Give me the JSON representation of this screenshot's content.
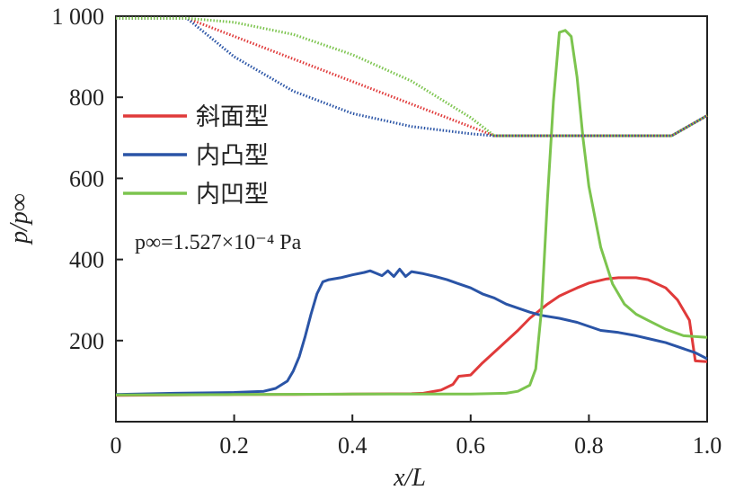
{
  "chart_data": {
    "type": "line",
    "xlabel": "x/L",
    "ylabel": "p/p∞",
    "xlim": [
      0,
      1.0
    ],
    "ylim": [
      0,
      1000
    ],
    "grid": false,
    "legend_position": "center-left",
    "x_ticks": [
      "0",
      "0.2",
      "0.4",
      "0.6",
      "0.8",
      "1.0"
    ],
    "y_ticks": [
      "200",
      "400",
      "600",
      "800",
      "1 000"
    ],
    "annotation": "p∞=1.527×10⁻⁴ Pa",
    "colors": {
      "red": "#e03a3a",
      "blue": "#2a54a6",
      "green": "#7cc44e"
    },
    "series": [
      {
        "name": "斜面型",
        "color": "#e03a3a",
        "style": "solid",
        "x": [
          0.0,
          0.1,
          0.2,
          0.3,
          0.4,
          0.5,
          0.52,
          0.55,
          0.57,
          0.58,
          0.6,
          0.62,
          0.65,
          0.68,
          0.7,
          0.73,
          0.75,
          0.78,
          0.8,
          0.83,
          0.85,
          0.88,
          0.9,
          0.93,
          0.95,
          0.97,
          0.98,
          1.0
        ],
        "y": [
          65,
          66,
          67,
          67,
          68,
          69,
          70,
          78,
          92,
          112,
          115,
          145,
          185,
          225,
          255,
          290,
          310,
          330,
          342,
          352,
          355,
          355,
          350,
          330,
          300,
          250,
          150,
          148
        ]
      },
      {
        "name": "内凸型",
        "color": "#2a54a6",
        "style": "solid",
        "x": [
          0.0,
          0.1,
          0.2,
          0.25,
          0.27,
          0.29,
          0.3,
          0.31,
          0.32,
          0.33,
          0.34,
          0.35,
          0.36,
          0.38,
          0.4,
          0.42,
          0.43,
          0.44,
          0.45,
          0.46,
          0.47,
          0.48,
          0.49,
          0.5,
          0.52,
          0.54,
          0.56,
          0.58,
          0.6,
          0.62,
          0.64,
          0.66,
          0.68,
          0.7,
          0.72,
          0.75,
          0.78,
          0.8,
          0.82,
          0.85,
          0.88,
          0.9,
          0.93,
          0.95,
          0.98,
          1.0
        ],
        "y": [
          67,
          70,
          72,
          75,
          82,
          100,
          125,
          160,
          210,
          265,
          315,
          345,
          350,
          355,
          362,
          368,
          372,
          366,
          360,
          372,
          358,
          376,
          358,
          370,
          365,
          358,
          350,
          340,
          330,
          315,
          305,
          290,
          280,
          270,
          262,
          255,
          245,
          235,
          225,
          220,
          212,
          205,
          195,
          185,
          170,
          155
        ]
      },
      {
        "name": "内凹型",
        "color": "#7cc44e",
        "style": "solid",
        "x": [
          0.0,
          0.2,
          0.4,
          0.6,
          0.66,
          0.68,
          0.7,
          0.71,
          0.72,
          0.73,
          0.74,
          0.75,
          0.76,
          0.77,
          0.78,
          0.79,
          0.8,
          0.82,
          0.84,
          0.86,
          0.88,
          0.9,
          0.93,
          0.96,
          1.0
        ],
        "y": [
          66,
          67,
          68,
          68,
          70,
          75,
          90,
          130,
          280,
          550,
          790,
          960,
          965,
          950,
          850,
          700,
          580,
          430,
          340,
          290,
          265,
          250,
          228,
          212,
          208
        ]
      },
      {
        "name": "斜面型-wall",
        "color": "#e03a3a",
        "style": "dotted",
        "x": [
          0.0,
          0.12,
          0.64,
          0.94,
          1.0
        ],
        "y": [
          995,
          995,
          705,
          705,
          755
        ]
      },
      {
        "name": "内凸型-wall",
        "color": "#2a54a6",
        "style": "dotted",
        "x": [
          0.0,
          0.12,
          0.2,
          0.3,
          0.4,
          0.5,
          0.6,
          0.64,
          0.94,
          1.0
        ],
        "y": [
          995,
          995,
          900,
          815,
          760,
          728,
          710,
          705,
          705,
          755
        ]
      },
      {
        "name": "内凹型-wall",
        "color": "#7cc44e",
        "style": "dotted",
        "x": [
          0.0,
          0.12,
          0.2,
          0.3,
          0.4,
          0.5,
          0.6,
          0.64,
          0.94,
          1.0
        ],
        "y": [
          995,
          995,
          985,
          955,
          905,
          840,
          750,
          705,
          705,
          755
        ]
      }
    ],
    "legend": [
      "斜面型",
      "内凸型",
      "内凹型"
    ]
  }
}
